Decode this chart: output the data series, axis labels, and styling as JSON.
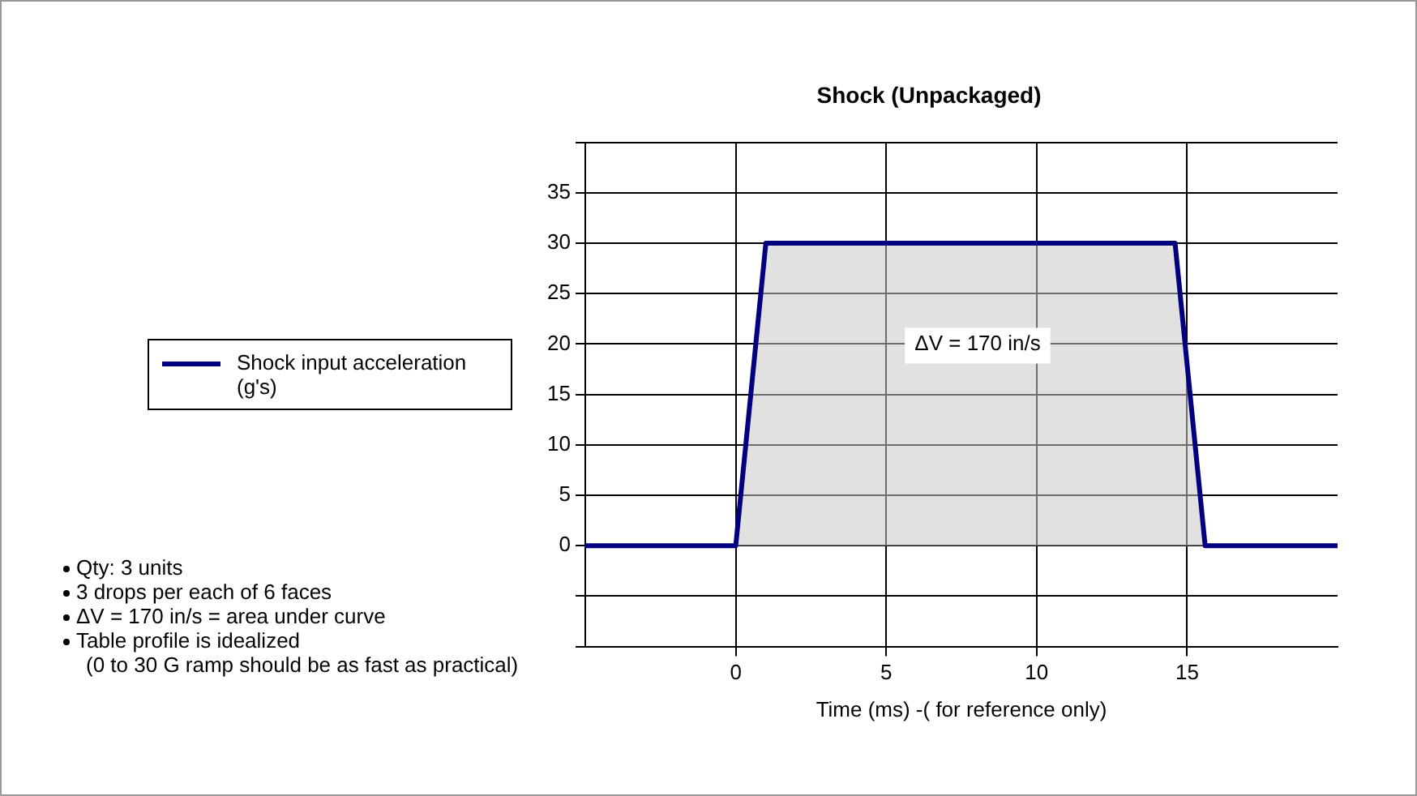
{
  "chart_data": {
    "type": "area",
    "title": "Shock (Unpackaged)",
    "xlabel": "Time (ms) -( for reference only)",
    "x": [
      -5,
      0,
      1,
      14.6,
      15.6,
      20
    ],
    "series": [
      {
        "name": "Shock input acceleration (g's)",
        "color": "#000080",
        "values": [
          0,
          0,
          30,
          30,
          0,
          0
        ]
      }
    ],
    "xlim": [
      -5,
      20
    ],
    "xticks": [
      0,
      5,
      10,
      15
    ],
    "ylim": [
      -10,
      40
    ],
    "yticks": [
      {
        "value": -10,
        "label": null
      },
      {
        "value": -5,
        "label": null
      },
      0,
      5,
      10,
      15,
      20,
      25,
      30,
      35,
      {
        "value": 40,
        "label": null
      }
    ],
    "grid": true,
    "legend": "left",
    "annotations": [
      "ΔV = 170 in/s",
      "Qty: 3 units",
      "3 drops per each of 6 faces",
      "ΔV = 170 in/s = area under curve",
      "Table profile is idealized\n(0 to 30 G ramp should be as fast as practical)"
    ]
  }
}
